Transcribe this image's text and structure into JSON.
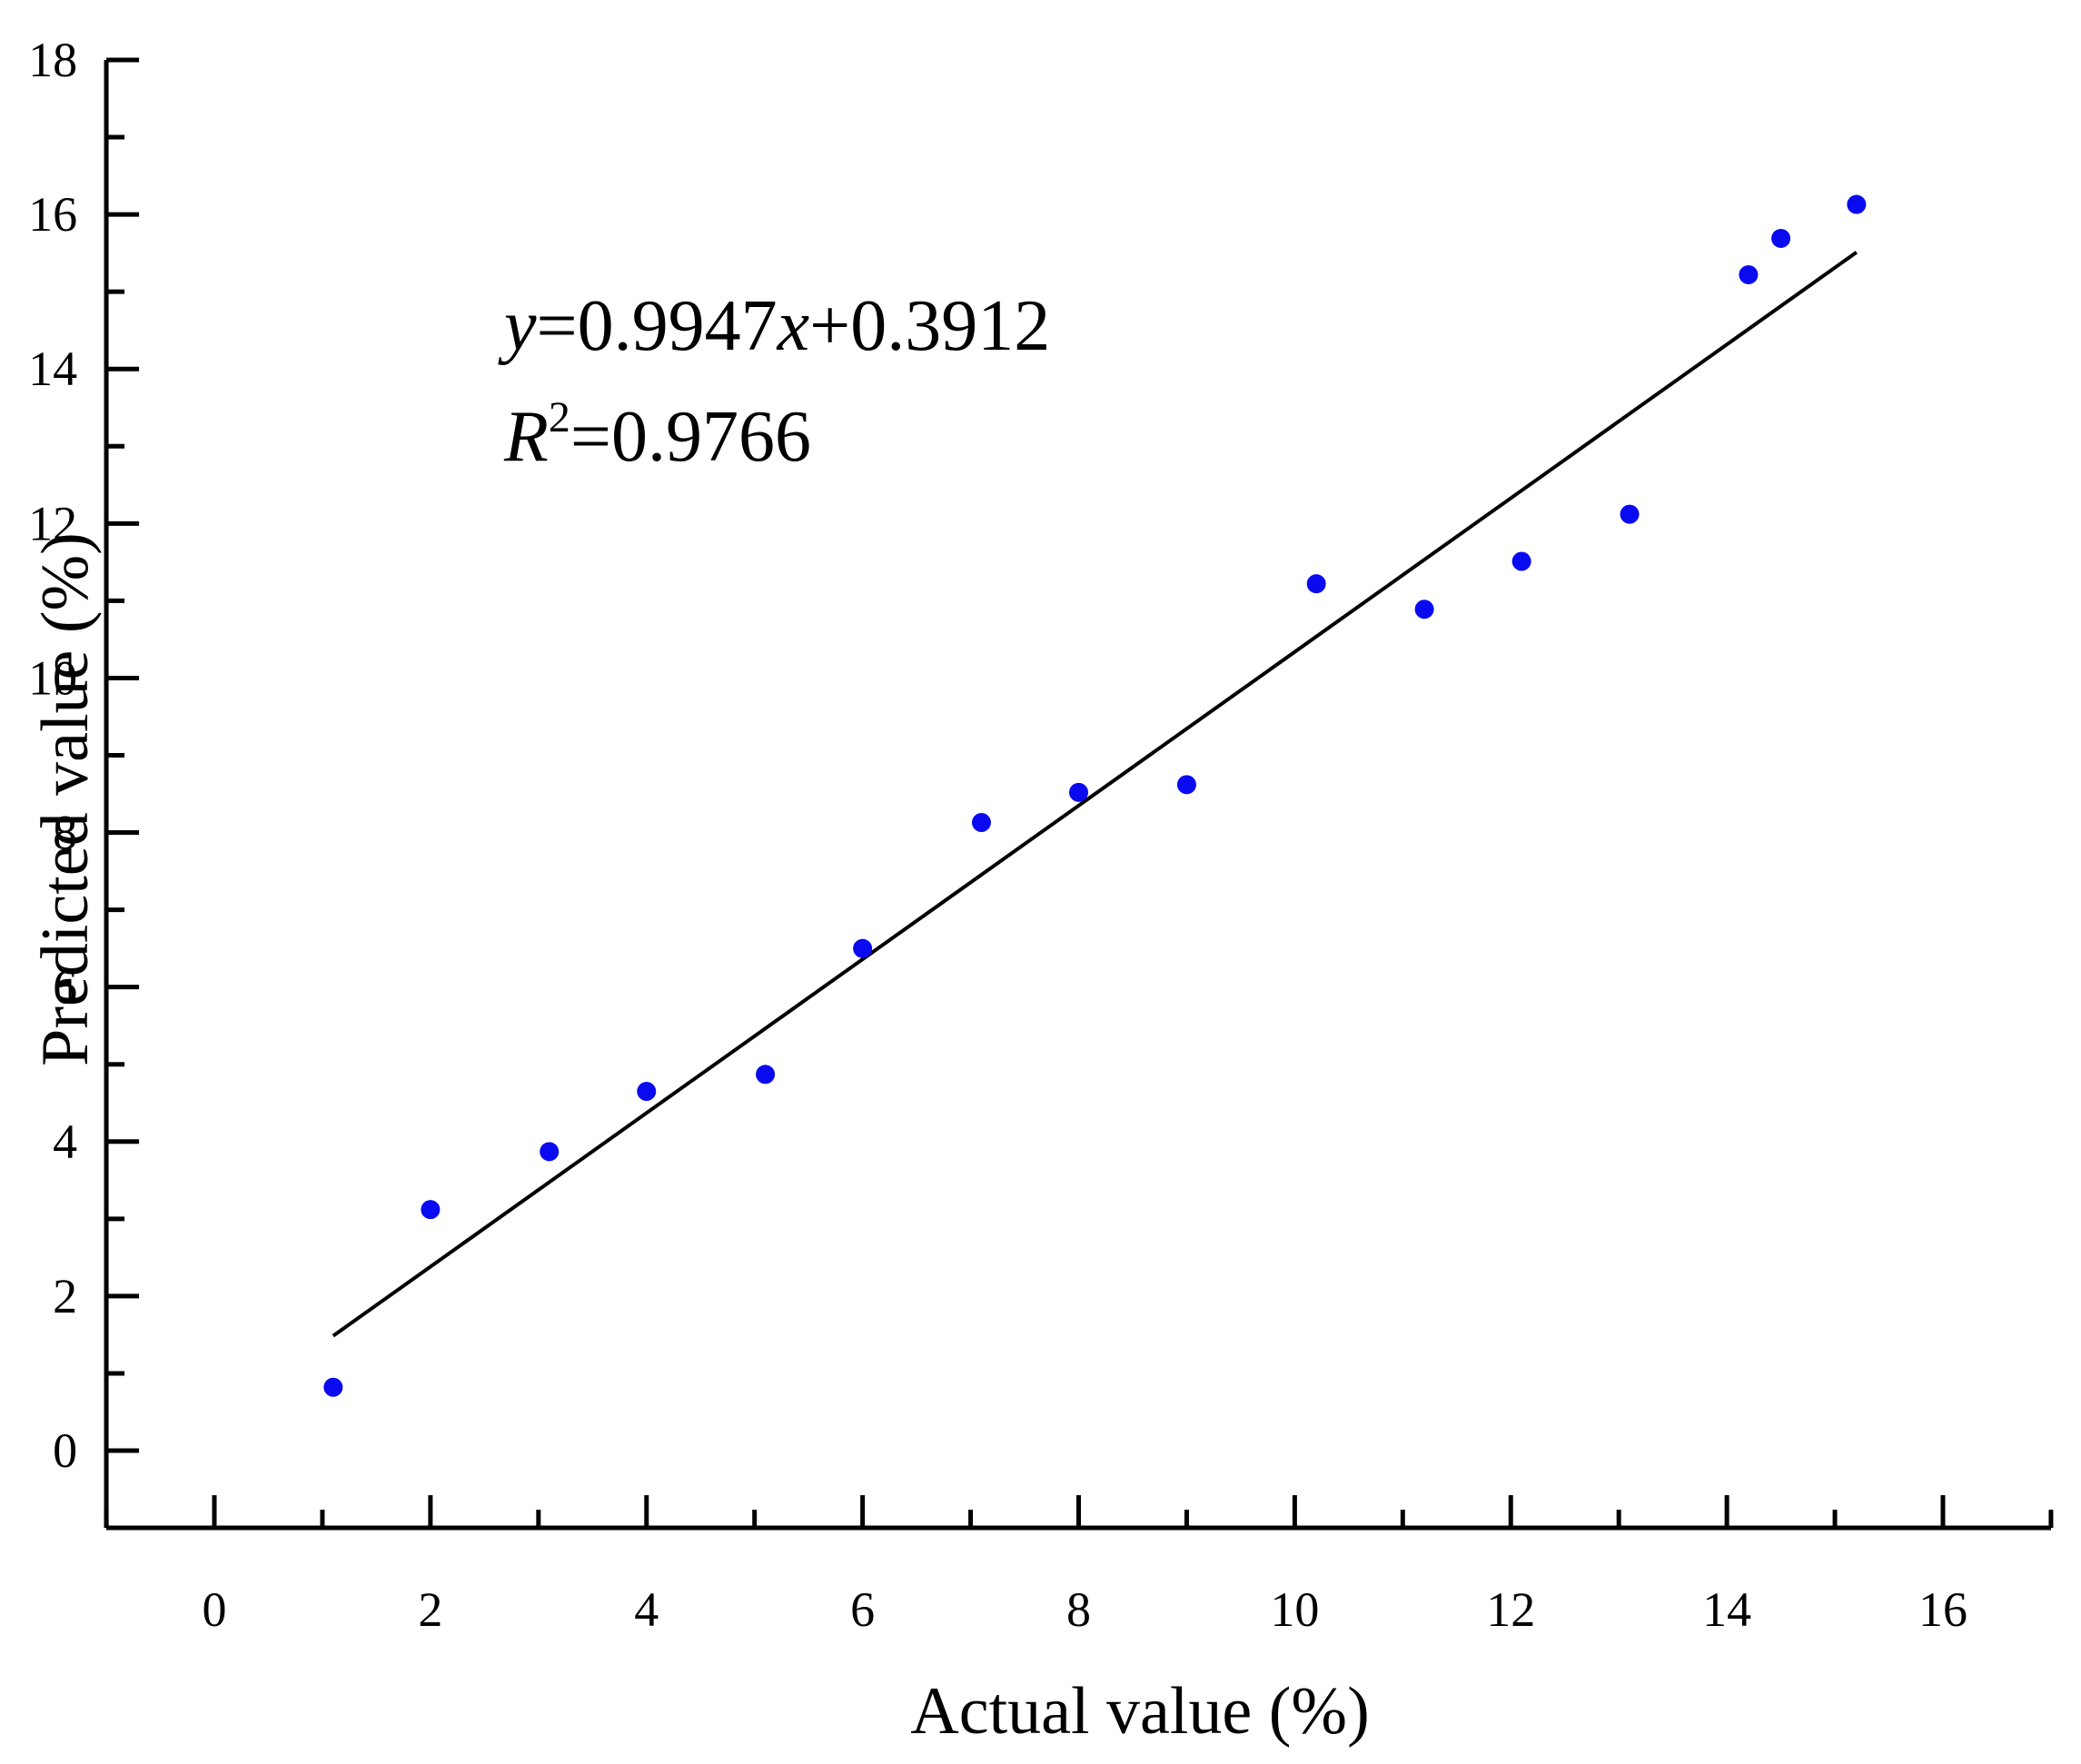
{
  "chart_data": {
    "type": "scatter",
    "title": "",
    "xlabel": "Actual value (%)",
    "ylabel": "Predicted value (%)",
    "xlim": [
      -1,
      17
    ],
    "ylim": [
      -1,
      18
    ],
    "xticks": [
      0,
      2,
      4,
      6,
      8,
      10,
      12,
      14,
      16
    ],
    "yticks": [
      0,
      2,
      4,
      6,
      8,
      10,
      12,
      14,
      16,
      18
    ],
    "x_minor_step": 1,
    "y_minor_step": 1,
    "grid": false,
    "marker_color": "#0a0af0",
    "series": [
      {
        "name": "Samples",
        "x": [
          1.1,
          2.0,
          3.1,
          4.0,
          5.1,
          6.0,
          7.1,
          8.0,
          9.0,
          10.2,
          11.2,
          12.1,
          13.1,
          14.2,
          14.5,
          15.2
        ],
        "y": [
          0.82,
          3.12,
          3.87,
          4.65,
          4.87,
          6.5,
          8.13,
          8.52,
          8.62,
          11.22,
          10.89,
          11.51,
          12.12,
          15.22,
          15.69,
          16.13
        ]
      }
    ],
    "fit_line": {
      "slope": 0.9947,
      "intercept": 0.3912,
      "x_range": [
        1.1,
        15.2
      ]
    },
    "annotations": {
      "equation": {
        "y_var": "y",
        "middle": "=0.9947",
        "x_var": "x",
        "tail": "+0.3912"
      },
      "r_squared": {
        "var": "R",
        "sup": "2",
        "tail": "=0.9766"
      }
    }
  }
}
